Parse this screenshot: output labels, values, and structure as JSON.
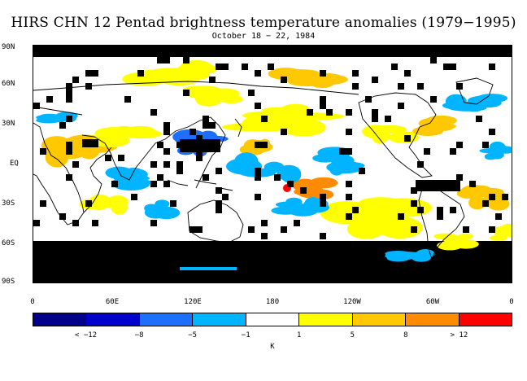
{
  "title": "HIRS CHN 12 Pentad brightness temperature anomalies (1979−1995)",
  "subtitle": "October 18 − 22, 1984",
  "lat_labels": [
    "90N",
    "60N",
    "30N",
    "EQ",
    "30S",
    "60S",
    "90S"
  ],
  "lon_labels": [
    "0",
    "60E",
    "120E",
    "180",
    "120W",
    "60W",
    "0"
  ],
  "colorbar": {
    "colors": [
      "#00008b",
      "#0000cd",
      "#1e6fff",
      "#00b4ff",
      "#ffffff",
      "#ffff00",
      "#ffc800",
      "#ff8c00",
      "#ff0000"
    ],
    "labels": [
      "< −12",
      "−8",
      "−5",
      "−1",
      "1",
      "5",
      "8",
      "> 12"
    ],
    "unit": "K"
  },
  "colors": {
    "missing": "#000000",
    "coast": "#000000"
  }
}
